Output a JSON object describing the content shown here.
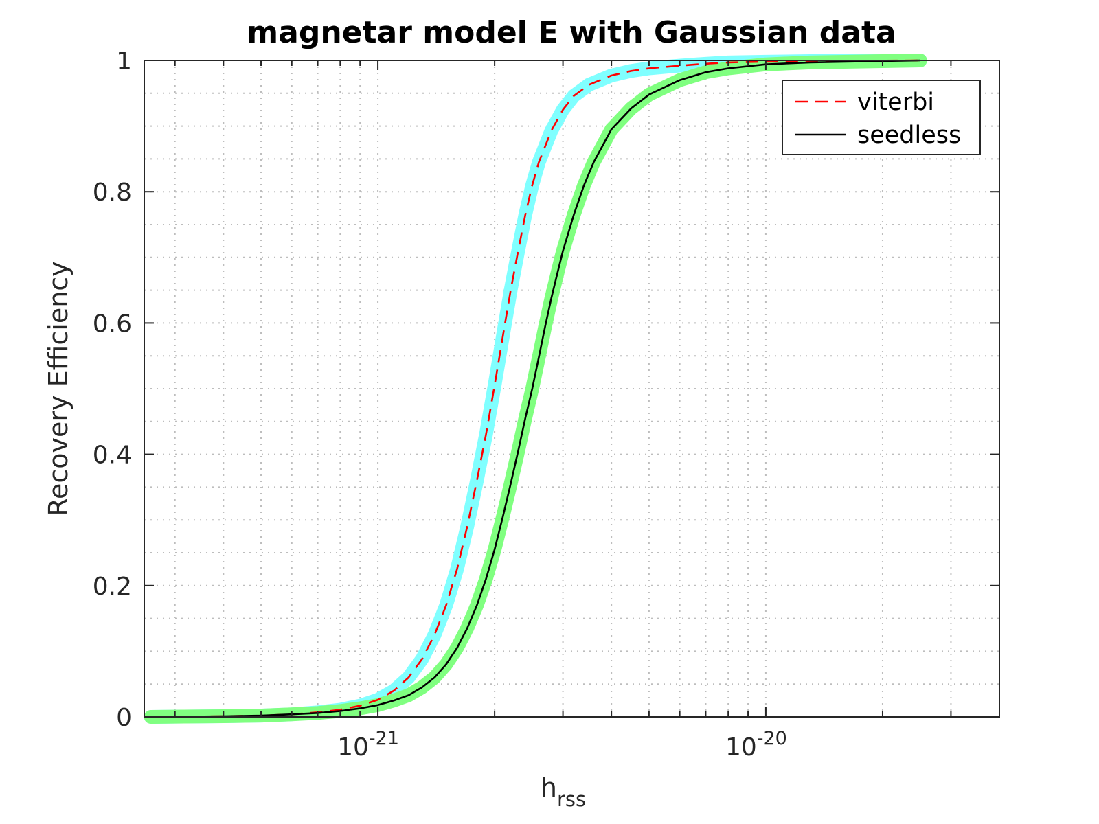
{
  "chart_data": {
    "type": "line",
    "title": "magnetar model E with Gaussian data",
    "xlabel": "h",
    "xlabel_subscript": "rss",
    "ylabel": "Recovery Efficiency",
    "xscale": "log",
    "xlim": [
      2.5e-22,
      4e-20
    ],
    "ylim": [
      0,
      1
    ],
    "xticks": [
      {
        "value": 1e-21,
        "base": "10",
        "exponent": "-21"
      },
      {
        "value": 1e-20,
        "base": "10",
        "exponent": "-20"
      }
    ],
    "yticks": [
      {
        "value": 0,
        "label": "0"
      },
      {
        "value": 0.2,
        "label": "0.2"
      },
      {
        "value": 0.4,
        "label": "0.4"
      },
      {
        "value": 0.6,
        "label": "0.6"
      },
      {
        "value": 0.8,
        "label": "0.8"
      },
      {
        "value": 1,
        "label": "1"
      }
    ],
    "grid": true,
    "legend_position": "top-right",
    "series": [
      {
        "name": "viterbi",
        "color": "#ff0000",
        "line_style": "dashed",
        "band_color": "#80ffff",
        "x": [
          2.6e-22,
          4e-22,
          5e-22,
          6e-22,
          7e-22,
          8e-22,
          9e-22,
          1e-21,
          1.1e-21,
          1.2e-21,
          1.3e-21,
          1.4e-21,
          1.5e-21,
          1.6e-21,
          1.7e-21,
          1.8e-21,
          1.9e-21,
          2e-21,
          2.1e-21,
          2.2e-21,
          2.3e-21,
          2.4e-21,
          2.5e-21,
          2.6e-21,
          2.8e-21,
          3e-21,
          3.2e-21,
          3.5e-21,
          4e-21,
          4.5e-21,
          5e-21,
          6e-21,
          7e-21,
          8e-21,
          1e-20,
          1.3e-20,
          2.5e-20
        ],
        "y": [
          0,
          0.001,
          0.002,
          0.004,
          0.007,
          0.011,
          0.017,
          0.026,
          0.04,
          0.06,
          0.088,
          0.125,
          0.17,
          0.225,
          0.29,
          0.36,
          0.43,
          0.505,
          0.58,
          0.65,
          0.71,
          0.765,
          0.81,
          0.845,
          0.893,
          0.925,
          0.946,
          0.963,
          0.977,
          0.984,
          0.988,
          0.992,
          0.995,
          0.997,
          0.998,
          0.999,
          1.0
        ]
      },
      {
        "name": "seedless",
        "color": "#000000",
        "line_style": "solid",
        "band_color": "#80ff80",
        "x": [
          2.6e-22,
          4e-22,
          5e-22,
          6e-22,
          7e-22,
          8e-22,
          9e-22,
          1e-21,
          1.1e-21,
          1.2e-21,
          1.3e-21,
          1.4e-21,
          1.5e-21,
          1.6e-21,
          1.7e-21,
          1.8e-21,
          1.9e-21,
          2e-21,
          2.1e-21,
          2.2e-21,
          2.3e-21,
          2.4e-21,
          2.5e-21,
          2.6e-21,
          2.7e-21,
          2.8e-21,
          2.9e-21,
          3e-21,
          3.2e-21,
          3.4e-21,
          3.6e-21,
          4e-21,
          4.5e-21,
          5e-21,
          6e-21,
          7e-21,
          8e-21,
          1e-20,
          1.3e-20,
          2e-20,
          2.5e-20
        ],
        "y": [
          0,
          0.001,
          0.002,
          0.004,
          0.006,
          0.009,
          0.013,
          0.018,
          0.025,
          0.033,
          0.045,
          0.06,
          0.08,
          0.105,
          0.135,
          0.17,
          0.21,
          0.255,
          0.305,
          0.355,
          0.405,
          0.455,
          0.5,
          0.548,
          0.595,
          0.638,
          0.675,
          0.71,
          0.765,
          0.81,
          0.845,
          0.895,
          0.927,
          0.948,
          0.97,
          0.982,
          0.988,
          0.994,
          0.997,
          0.999,
          1.0
        ]
      }
    ]
  }
}
